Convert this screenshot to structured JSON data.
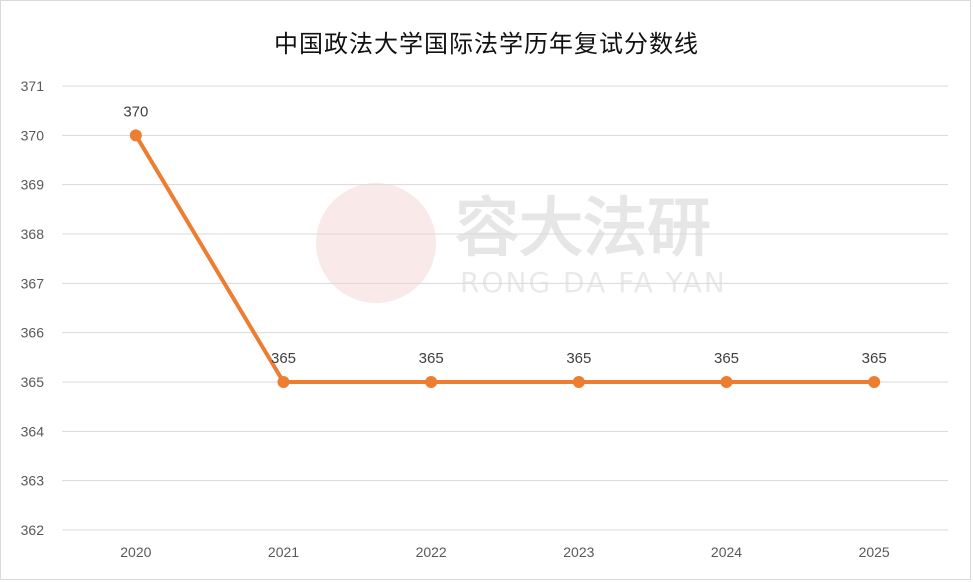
{
  "watermark": {
    "brand_cn": "容大法研",
    "brand_en": "RONG DA FA YAN",
    "color": "#e8aaa8"
  },
  "chart_data": {
    "type": "line",
    "title": "中国政法大学国际法学历年复试分数线",
    "xlabel": "",
    "ylabel": "",
    "categories": [
      "2020",
      "2021",
      "2022",
      "2023",
      "2024",
      "2025"
    ],
    "series": [
      {
        "values": [
          370,
          365,
          365,
          365,
          365,
          365
        ],
        "color": "#ed7d31"
      }
    ],
    "data_labels": [
      "370",
      "365",
      "365",
      "365",
      "365",
      "365"
    ],
    "ylim": [
      362,
      371
    ],
    "y_ticks": [
      "362",
      "363",
      "364",
      "365",
      "366",
      "367",
      "368",
      "369",
      "370",
      "371"
    ],
    "grid": true,
    "legend": "none"
  }
}
